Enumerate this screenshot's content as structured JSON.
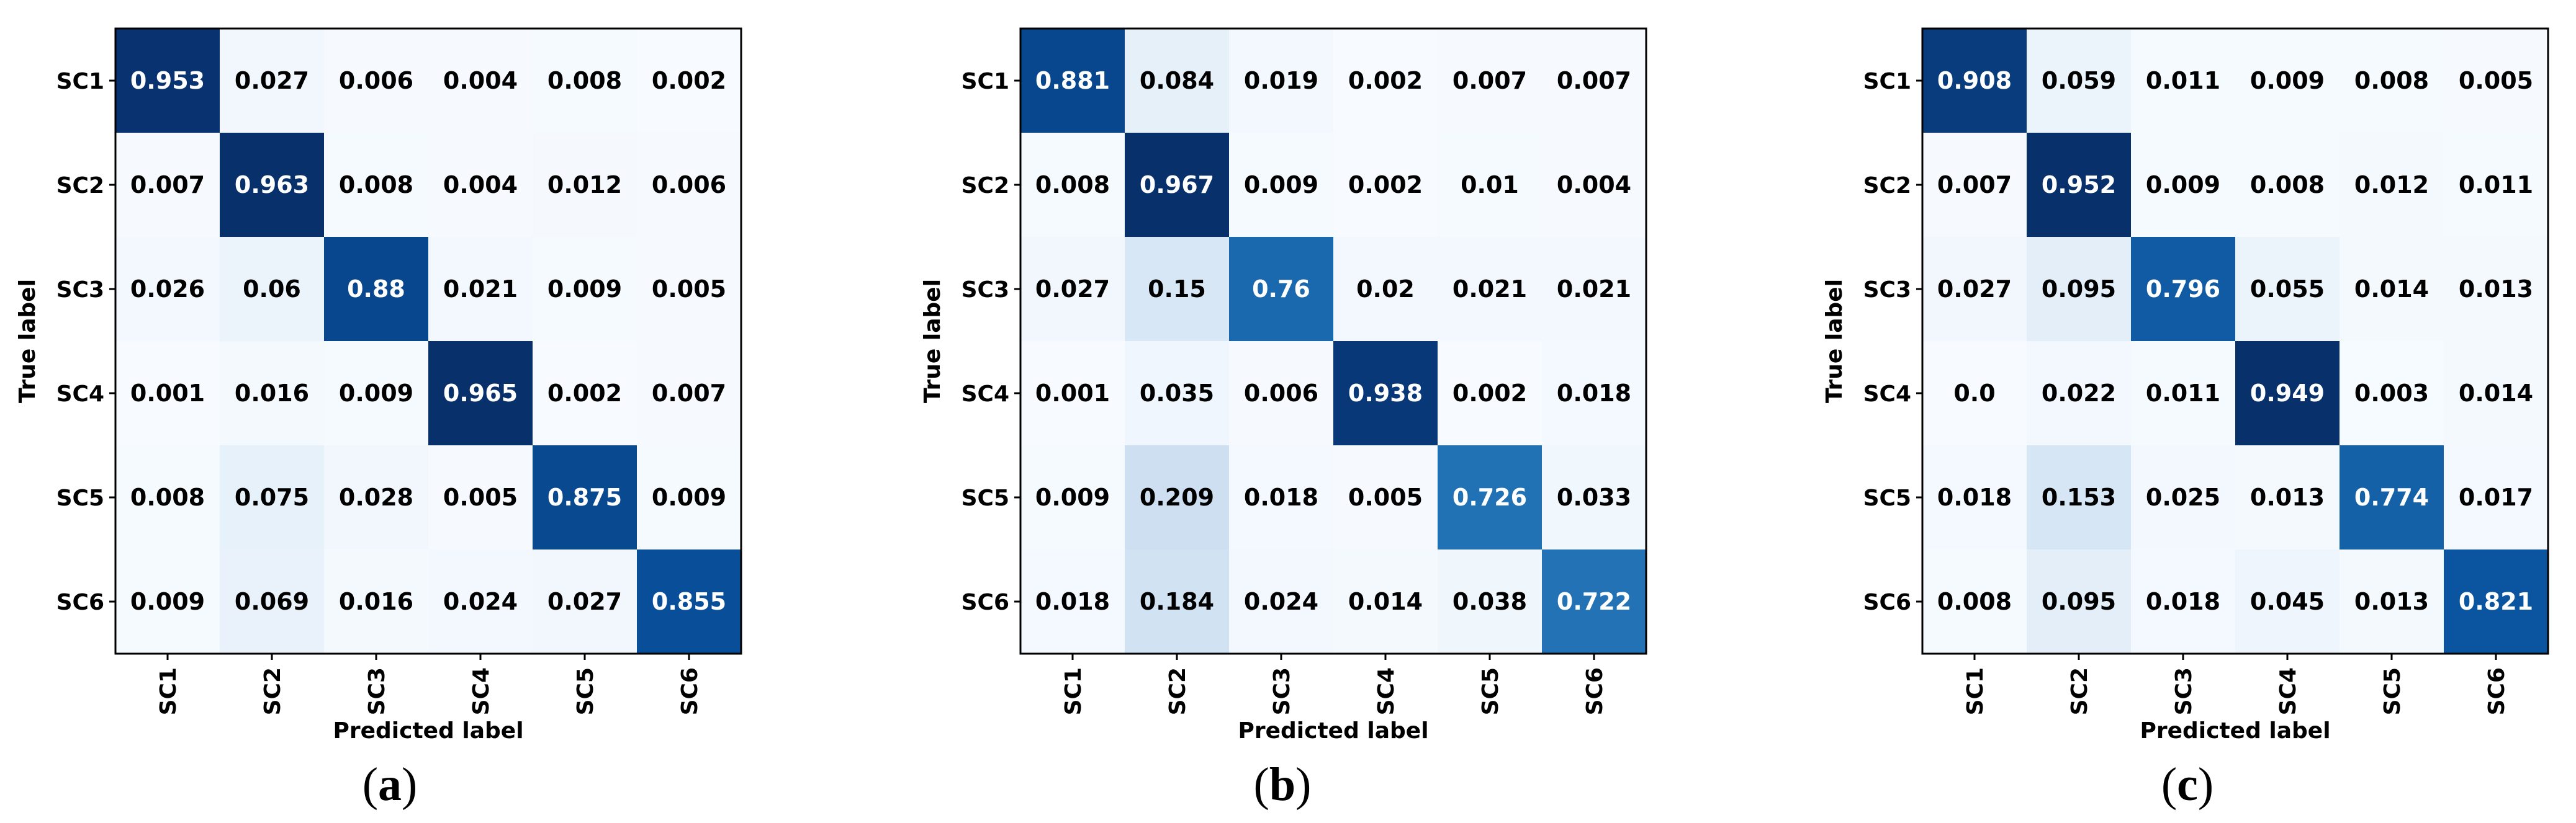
{
  "chart_data": [
    {
      "type": "heatmap",
      "panel_label": "(a)",
      "panel_letter": "a",
      "x_categories": [
        "SC1",
        "SC2",
        "SC3",
        "SC4",
        "SC5",
        "SC6"
      ],
      "y_categories": [
        "SC1",
        "SC2",
        "SC3",
        "SC4",
        "SC5",
        "SC6"
      ],
      "xlabel": "Predicted label",
      "ylabel": "True label",
      "colormap": "Blues",
      "value_range": [
        0,
        1
      ],
      "values": [
        [
          "0.953",
          "0.027",
          "0.006",
          "0.004",
          "0.008",
          "0.002"
        ],
        [
          "0.007",
          "0.963",
          "0.008",
          "0.004",
          "0.012",
          "0.006"
        ],
        [
          "0.026",
          "0.06",
          "0.88",
          "0.021",
          "0.009",
          "0.005"
        ],
        [
          "0.001",
          "0.016",
          "0.009",
          "0.965",
          "0.002",
          "0.007"
        ],
        [
          "0.008",
          "0.075",
          "0.028",
          "0.005",
          "0.875",
          "0.009"
        ],
        [
          "0.009",
          "0.069",
          "0.016",
          "0.024",
          "0.027",
          "0.855"
        ]
      ]
    },
    {
      "type": "heatmap",
      "panel_label": "(b)",
      "panel_letter": "b",
      "x_categories": [
        "SC1",
        "SC2",
        "SC3",
        "SC4",
        "SC5",
        "SC6"
      ],
      "y_categories": [
        "SC1",
        "SC2",
        "SC3",
        "SC4",
        "SC5",
        "SC6"
      ],
      "xlabel": "Predicted label",
      "ylabel": "True label",
      "colormap": "Blues",
      "value_range": [
        0,
        1
      ],
      "values": [
        [
          "0.881",
          "0.084",
          "0.019",
          "0.002",
          "0.007",
          "0.007"
        ],
        [
          "0.008",
          "0.967",
          "0.009",
          "0.002",
          "0.01",
          "0.004"
        ],
        [
          "0.027",
          "0.15",
          "0.76",
          "0.02",
          "0.021",
          "0.021"
        ],
        [
          "0.001",
          "0.035",
          "0.006",
          "0.938",
          "0.002",
          "0.018"
        ],
        [
          "0.009",
          "0.209",
          "0.018",
          "0.005",
          "0.726",
          "0.033"
        ],
        [
          "0.018",
          "0.184",
          "0.024",
          "0.014",
          "0.038",
          "0.722"
        ]
      ]
    },
    {
      "type": "heatmap",
      "panel_label": "(c)",
      "panel_letter": "c",
      "x_categories": [
        "SC1",
        "SC2",
        "SC3",
        "SC4",
        "SC5",
        "SC6"
      ],
      "y_categories": [
        "SC1",
        "SC2",
        "SC3",
        "SC4",
        "SC5",
        "SC6"
      ],
      "xlabel": "Predicted label",
      "ylabel": "True label",
      "colormap": "Blues",
      "value_range": [
        0,
        1
      ],
      "values": [
        [
          "0.908",
          "0.059",
          "0.011",
          "0.009",
          "0.008",
          "0.005"
        ],
        [
          "0.007",
          "0.952",
          "0.009",
          "0.008",
          "0.012",
          "0.011"
        ],
        [
          "0.027",
          "0.095",
          "0.796",
          "0.055",
          "0.014",
          "0.013"
        ],
        [
          "0.0",
          "0.022",
          "0.011",
          "0.949",
          "0.003",
          "0.014"
        ],
        [
          "0.018",
          "0.153",
          "0.025",
          "0.013",
          "0.774",
          "0.017"
        ],
        [
          "0.008",
          "0.095",
          "0.018",
          "0.045",
          "0.013",
          "0.821"
        ]
      ]
    }
  ]
}
